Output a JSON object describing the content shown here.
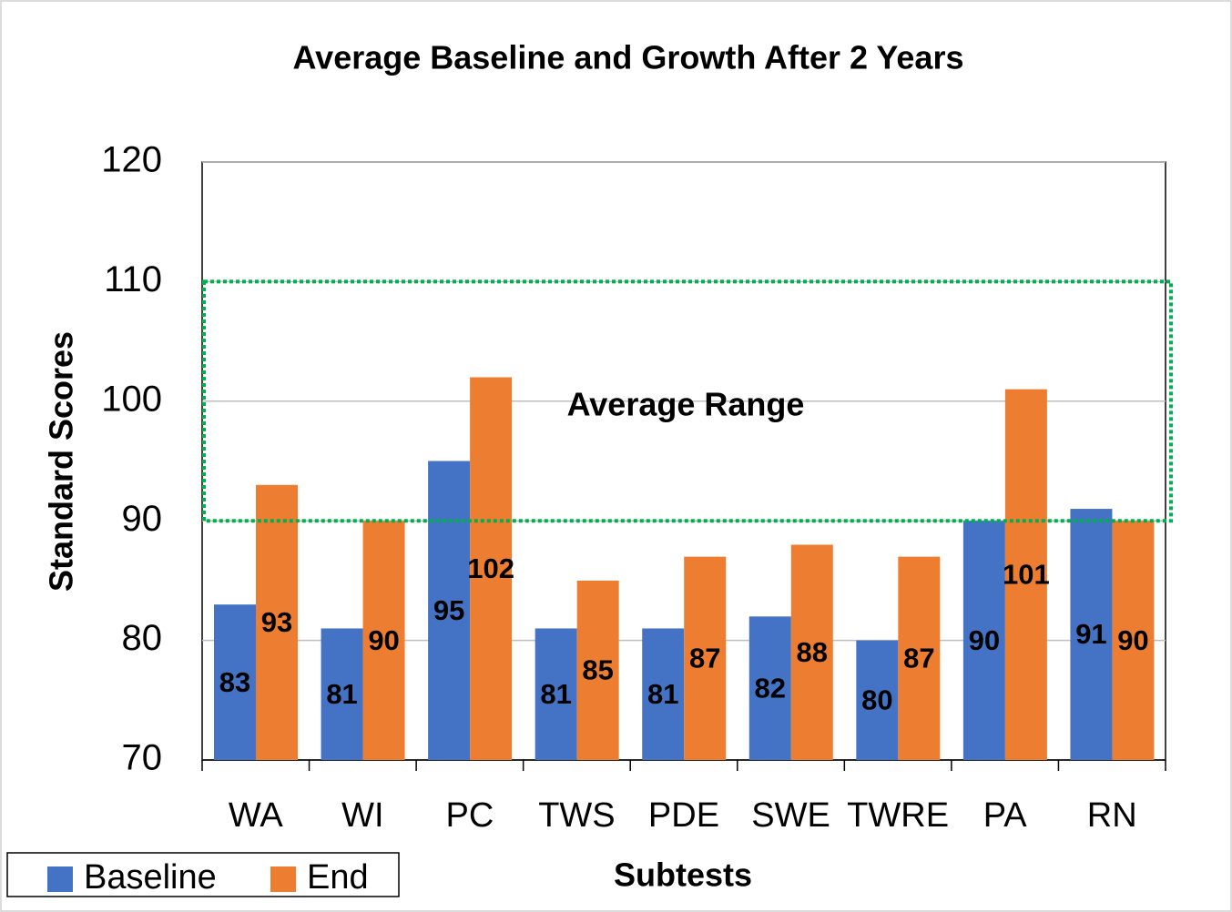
{
  "chart_data": {
    "type": "bar",
    "title": "Average Baseline and Growth After 2 Years",
    "x_label": "Subtests",
    "y_label": "Standard Scores",
    "categories": [
      "WA",
      "WI",
      "PC",
      "TWS",
      "PDE",
      "SWE",
      "TWRE",
      "PA",
      "RN"
    ],
    "series": [
      {
        "name": "Baseline",
        "color": "#4472c4",
        "values": [
          83,
          81,
          95,
          81,
          81,
          82,
          80,
          90,
          91
        ]
      },
      {
        "name": "End",
        "color": "#ed7d31",
        "values": [
          93,
          90,
          102,
          85,
          87,
          88,
          87,
          101,
          90
        ]
      }
    ],
    "ylim": [
      70,
      120
    ],
    "yticks": [
      70,
      80,
      90,
      100,
      110,
      120
    ],
    "grid": true,
    "legend": "bottom-left",
    "average_range": {
      "label": "Average Range",
      "range": [
        90,
        110
      ],
      "color": "#00b050"
    }
  }
}
